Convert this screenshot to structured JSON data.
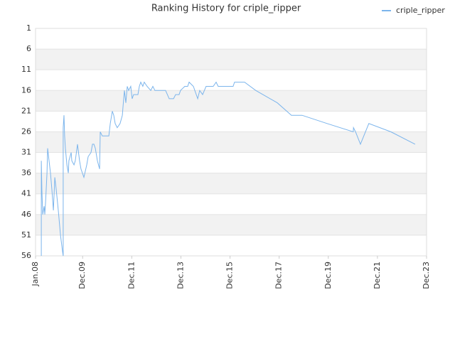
{
  "chart_data": {
    "type": "line",
    "title": "Ranking History for criple_ripper",
    "x": [
      2.8,
      2.8,
      3.1,
      3.5,
      4.2,
      4.5,
      4.9,
      5.6,
      5.9,
      6.6,
      7.3,
      8.0,
      8.7,
      9.4,
      10.1,
      11.1,
      12.2,
      13.2,
      13.5,
      13.5,
      13.9,
      14.2,
      14.6,
      15.3,
      16.0,
      16.3,
      17.4,
      17.7,
      18.8,
      19.4,
      20.5,
      21.5,
      22.2,
      23.6,
      25.0,
      25.7,
      27.1,
      27.8,
      28.5,
      29.2,
      30.2,
      31.3,
      31.6,
      32.6,
      33.7,
      34.7,
      35.8,
      36.5,
      37.5,
      38.2,
      38.9,
      39.9,
      41.3,
      42.4,
      42.7,
      43.4,
      44.1,
      44.8,
      45.5,
      46.5,
      47.2,
      47.9,
      50.0,
      50.7,
      51.4,
      52.4,
      53.1,
      54.5,
      56.3,
      57.3,
      58.3,
      63.5,
      65.3,
      67.4,
      68.4,
      70.1,
      70.8,
      72.9,
      74.3,
      75.0,
      77.1,
      79.2,
      80.2,
      81.6,
      83.3,
      86.8,
      88.2,
      89.2,
      96.5,
      97.2,
      102.1,
      107.6,
      118.1,
      125.0,
      130.2,
      142.4,
      155.2,
      155.3,
      156.3,
      158.7,
      162.8,
      173.6,
      185.4
    ],
    "series": [
      {
        "name": "criple_ripper",
        "color": "#7cb5ec",
        "values": [
          56,
          33,
          40,
          46,
          44,
          46,
          43,
          36,
          30,
          33,
          36,
          40,
          45,
          37,
          40,
          45,
          51,
          55,
          56,
          25,
          22,
          27,
          30,
          34,
          36,
          33,
          31,
          33,
          34,
          33,
          29,
          33,
          35,
          37,
          34,
          32,
          31,
          29,
          29,
          30,
          33,
          35,
          26,
          27,
          27,
          27,
          27,
          24,
          21,
          22,
          24,
          25,
          24,
          22,
          20,
          16,
          19,
          15,
          16,
          15,
          18,
          17,
          17,
          15,
          14,
          15,
          14,
          15,
          16,
          15,
          16,
          16,
          18,
          18,
          17,
          17,
          16,
          15,
          15,
          14,
          15,
          18,
          16,
          17,
          15,
          15,
          14,
          15,
          15,
          14,
          14,
          16,
          19,
          22,
          22,
          24,
          26,
          25,
          26,
          29,
          24,
          26,
          29
        ]
      }
    ],
    "xlim": [
      0,
      191
    ],
    "xticks": [
      {
        "value": 0,
        "label": "Jan.08"
      },
      {
        "value": 23,
        "label": "Dec.09"
      },
      {
        "value": 47,
        "label": "Dec.11"
      },
      {
        "value": 71,
        "label": "Dec.13"
      },
      {
        "value": 95,
        "label": "Dec.15"
      },
      {
        "value": 119,
        "label": "Dec.17"
      },
      {
        "value": 143,
        "label": "Dec.19"
      },
      {
        "value": 167,
        "label": "Dec.21"
      },
      {
        "value": 191,
        "label": "Dec.23"
      }
    ],
    "ylim": [
      56,
      1
    ],
    "yticks": [
      1,
      6,
      11,
      16,
      21,
      26,
      31,
      36,
      41,
      46,
      51,
      56
    ],
    "grid": true,
    "legend": "top-right"
  }
}
